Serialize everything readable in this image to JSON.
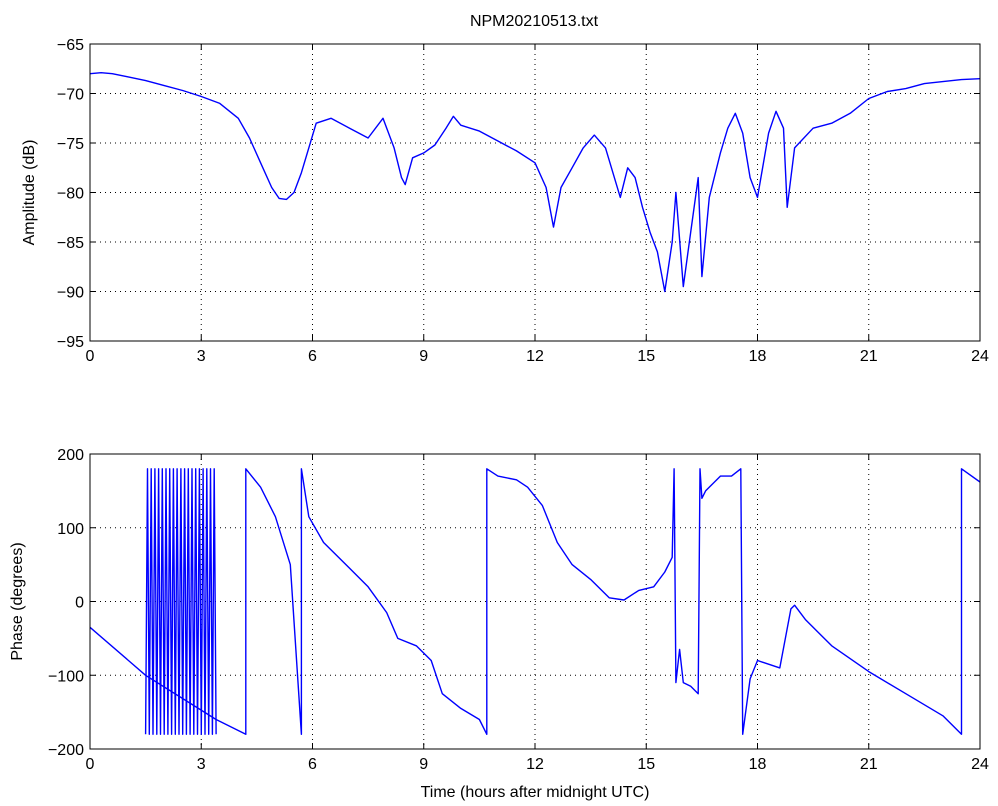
{
  "title": "NPM20210513.txt",
  "colors": {
    "line": "#0000ff",
    "axes": "#000000",
    "grid": "#000000",
    "background": "#ffffff"
  },
  "chart_data": [
    {
      "type": "line",
      "title": "NPM20210513.txt",
      "xlabel": "",
      "ylabel": "Amplitude (dB)",
      "xlim": [
        0,
        24
      ],
      "ylim": [
        -95,
        -65
      ],
      "xticks": [
        0,
        3,
        6,
        9,
        12,
        15,
        18,
        21,
        24
      ],
      "yticks": [
        -95,
        -90,
        -85,
        -80,
        -75,
        -70,
        -65
      ],
      "ytick_labels": [
        "−95",
        "−90",
        "−85",
        "−80",
        "−75",
        "−70",
        "−65"
      ],
      "grid": true,
      "series": [
        {
          "x": [
            0,
            0.3,
            0.6,
            1.0,
            1.5,
            2.0,
            2.5,
            3.0,
            3.5,
            4.0,
            4.3,
            4.6,
            4.9,
            5.1,
            5.3,
            5.5,
            5.7,
            5.9,
            6.1,
            6.5,
            7.0,
            7.5,
            7.9,
            8.2,
            8.4,
            8.5,
            8.7,
            9.0,
            9.3,
            9.6,
            9.8,
            10.0,
            10.5,
            11.0,
            11.5,
            12.0,
            12.3,
            12.5,
            12.7,
            13.0,
            13.3,
            13.6,
            13.9,
            14.1,
            14.3,
            14.5,
            14.7,
            14.9,
            15.1,
            15.3,
            15.5,
            15.7,
            15.8,
            16.0,
            16.2,
            16.4,
            16.5,
            16.7,
            17.0,
            17.2,
            17.4,
            17.6,
            17.8,
            18.0,
            18.3,
            18.5,
            18.7,
            18.8,
            19.0,
            19.5,
            20.0,
            20.5,
            21.0,
            21.5,
            22.0,
            22.5,
            23.0,
            23.5,
            24.0
          ],
          "y": [
            -68,
            -67.9,
            -68,
            -68.3,
            -68.7,
            -69.2,
            -69.7,
            -70.3,
            -71,
            -72.5,
            -74.5,
            -77,
            -79.5,
            -80.6,
            -80.7,
            -80,
            -78,
            -75.5,
            -73,
            -72.5,
            -73.5,
            -74.5,
            -72.5,
            -75.5,
            -78.5,
            -79.2,
            -76.5,
            -76,
            -75.2,
            -73.5,
            -72.3,
            -73.2,
            -73.8,
            -74.8,
            -75.8,
            -77,
            -79.5,
            -83.5,
            -79.5,
            -77.5,
            -75.5,
            -74.2,
            -75.5,
            -78,
            -80.5,
            -77.5,
            -78.5,
            -81.5,
            -84,
            -86,
            -90,
            -85,
            -80,
            -89.5,
            -84,
            -78.5,
            -88.5,
            -80.5,
            -76,
            -73.5,
            -72,
            -74,
            -78.5,
            -80.5,
            -74,
            -71.8,
            -73.5,
            -81.5,
            -75.5,
            -73.5,
            -73,
            -72,
            -70.5,
            -69.8,
            -69.5,
            -69,
            -68.8,
            -68.6,
            -68.5
          ]
        }
      ]
    },
    {
      "type": "line",
      "title": "",
      "xlabel": "Time (hours after midnight UTC)",
      "ylabel": "Phase (degrees)",
      "xlim": [
        0,
        24
      ],
      "ylim": [
        -200,
        200
      ],
      "xticks": [
        0,
        3,
        6,
        9,
        12,
        15,
        18,
        21,
        24
      ],
      "yticks": [
        -200,
        -100,
        0,
        100,
        200
      ],
      "ytick_labels": [
        "−200",
        "−100",
        "0",
        "100",
        "200"
      ],
      "grid": true,
      "series": [
        {
          "x": [
            0,
            1.5,
            3.4,
            4.2,
            4.2,
            4.6,
            5.0,
            5.4,
            5.7,
            5.7,
            5.9,
            6.3,
            7.0,
            7.5,
            8.0,
            8.3,
            8.8,
            9.2,
            9.5,
            10.0,
            10.5,
            10.7,
            10.7,
            11.0,
            11.5,
            11.8,
            12.2,
            12.6,
            13.0,
            13.5,
            14.0,
            14.4,
            14.8,
            15.2,
            15.5,
            15.7,
            15.75,
            15.8,
            15.9,
            16.0,
            16.2,
            16.4,
            16.45,
            16.5,
            16.6,
            16.8,
            17.0,
            17.3,
            17.55,
            17.6,
            17.8,
            18.0,
            18.3,
            18.6,
            18.9,
            19.0,
            19.3,
            20.0,
            21.0,
            22.0,
            23.0,
            23.5,
            23.5,
            24.0
          ],
          "y": [
            -35,
            -100,
            -160,
            -180,
            180,
            155,
            115,
            50,
            -180,
            180,
            115,
            80,
            45,
            20,
            -15,
            -50,
            -60,
            -80,
            -125,
            -145,
            -160,
            -180,
            180,
            170,
            165,
            155,
            130,
            80,
            50,
            30,
            5,
            2,
            15,
            20,
            40,
            60,
            180,
            -110,
            -65,
            -110,
            -115,
            -125,
            180,
            140,
            150,
            160,
            170,
            170,
            180,
            -180,
            -105,
            -80,
            -85,
            -90,
            -10,
            -5,
            -25,
            -60,
            -95,
            -125,
            -155,
            -180,
            180,
            162
          ]
        },
        {
          "x": [
            1.5,
            1.55,
            1.6,
            1.65,
            1.7,
            1.75,
            1.8,
            1.85,
            1.9,
            1.95,
            2.0,
            2.05,
            2.1,
            2.15,
            2.2,
            2.25,
            2.3,
            2.35,
            2.4,
            2.45,
            2.5,
            2.55,
            2.6,
            2.65,
            2.7,
            2.75,
            2.8,
            2.85,
            2.9,
            2.95,
            3.0,
            3.05,
            3.1,
            3.15,
            3.2,
            3.25,
            3.3,
            3.35,
            3.4
          ],
          "y": [
            -180,
            180,
            -180,
            180,
            -180,
            180,
            -180,
            180,
            -180,
            180,
            -180,
            180,
            -180,
            180,
            -180,
            180,
            -180,
            180,
            -180,
            180,
            -180,
            180,
            -180,
            180,
            -180,
            180,
            -180,
            180,
            -180,
            180,
            -180,
            180,
            -180,
            180,
            -180,
            180,
            -180,
            180,
            -180
          ]
        }
      ]
    }
  ]
}
